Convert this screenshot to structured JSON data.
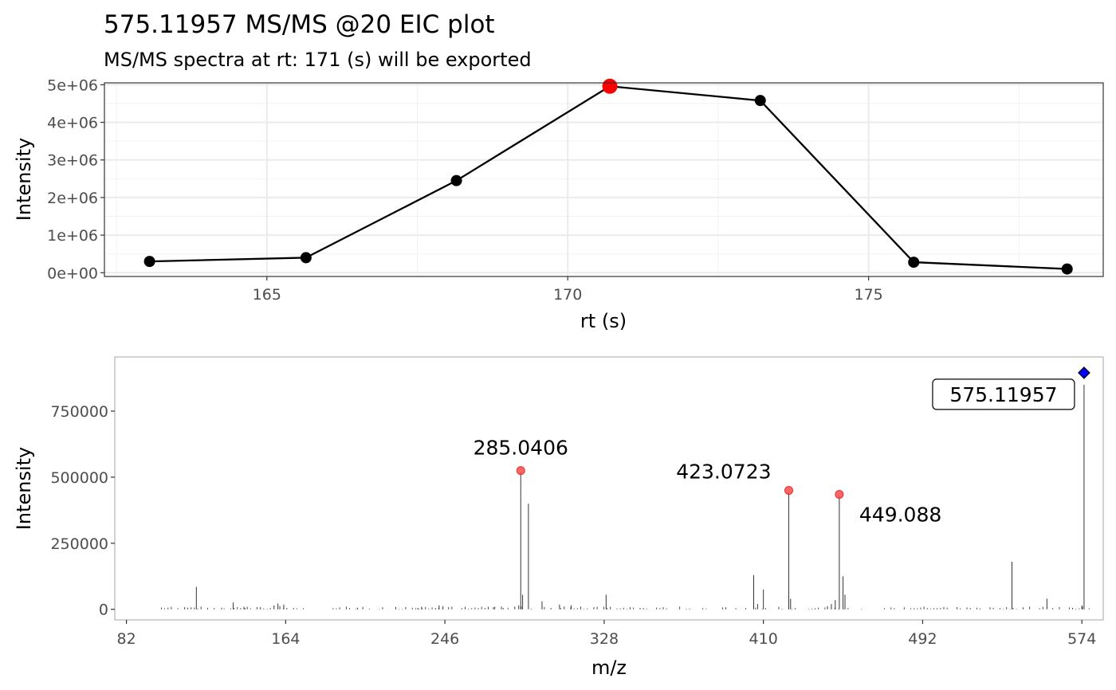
{
  "chart_data": [
    {
      "type": "line",
      "title": "575.11957 MS/MS @20 EIC plot",
      "subtitle": "MS/MS spectra at rt: 171 (s) will be exported",
      "xlabel": "rt (s)",
      "ylabel": "Intensity",
      "xlim": [
        162.3,
        178.9
      ],
      "ylim": [
        -100000,
        5050000
      ],
      "xticks": [
        165,
        170,
        175
      ],
      "xtick_labels": [
        "165",
        "170",
        "175"
      ],
      "yticks": [
        0,
        1000000,
        2000000,
        3000000,
        4000000,
        5000000
      ],
      "ytick_labels": [
        "0e+00",
        "1e+06",
        "2e+06",
        "3e+06",
        "4e+06",
        "5e+06"
      ],
      "grid": true,
      "x": [
        163.05,
        165.65,
        168.15,
        170.7,
        173.2,
        175.75,
        178.3
      ],
      "y": [
        300000,
        400000,
        2450000,
        4960000,
        4580000,
        280000,
        100000
      ],
      "highlight_index": 3,
      "highlight_color": "#ff0000",
      "line_color": "#000000"
    },
    {
      "type": "bar",
      "xlabel": "m/z",
      "ylabel": "Intensity",
      "xlim": [
        76,
        585
      ],
      "ylim": [
        -40000,
        955000
      ],
      "xticks": [
        82,
        164,
        246,
        328,
        410,
        492,
        574
      ],
      "xtick_labels": [
        "82",
        "164",
        "246",
        "328",
        "410",
        "492",
        "574"
      ],
      "yticks": [
        0,
        250000,
        500000,
        750000
      ],
      "ytick_labels": [
        "0",
        "250000",
        "500000",
        "750000"
      ],
      "grid": false,
      "peaks_mz": [
        112,
        118,
        131,
        137,
        143,
        151,
        158,
        160,
        161,
        163,
        201,
        232,
        234,
        243,
        245,
        271,
        276,
        282,
        284,
        285.04,
        286,
        289,
        296,
        305,
        311,
        329,
        405,
        407,
        410,
        423.07,
        424,
        443,
        445,
        447,
        449.09,
        451,
        452,
        538,
        556,
        574,
        575.12
      ],
      "peaks_intensity": [
        8000,
        85000,
        6000,
        26000,
        5000,
        8000,
        15000,
        22000,
        12000,
        18000,
        6000,
        5000,
        10000,
        15000,
        12000,
        8000,
        5000,
        10000,
        15000,
        520000,
        55000,
        400000,
        30000,
        18000,
        15000,
        55000,
        130000,
        20000,
        75000,
        445000,
        40000,
        12000,
        20000,
        35000,
        430000,
        125000,
        55000,
        180000,
        40000,
        15000,
        850000
      ],
      "labeled_peaks": [
        {
          "mz": 285.0406,
          "intensity": 525000,
          "label": "285.0406"
        },
        {
          "mz": 423.0723,
          "intensity": 450000,
          "label": "423.0723"
        },
        {
          "mz": 449.088,
          "intensity": 435000,
          "label": "449.088"
        }
      ],
      "precursor": {
        "mz": 575.11957,
        "intensity": 895000,
        "label": "575.11957"
      },
      "label_point_color": "#ff4b4b",
      "precursor_color": "#0000ff"
    }
  ]
}
